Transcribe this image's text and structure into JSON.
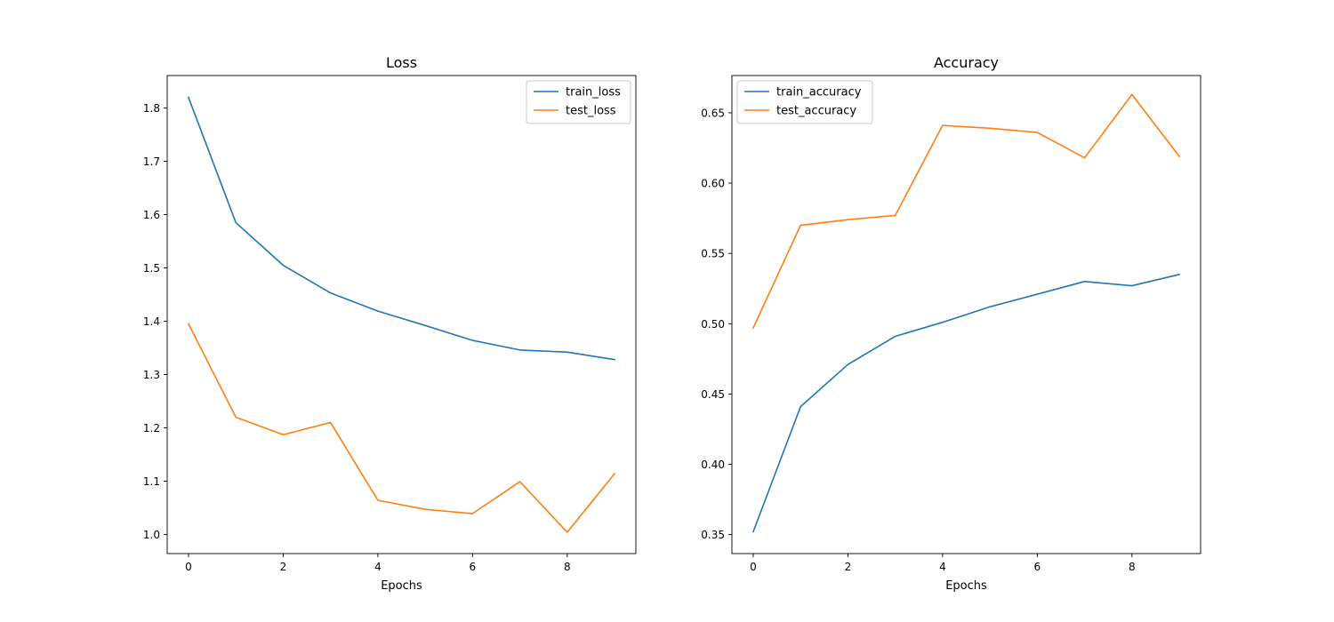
{
  "chart_data": [
    {
      "type": "line",
      "title": "Loss",
      "xlabel": "Epochs",
      "ylabel": "",
      "x": [
        0,
        1,
        2,
        3,
        4,
        5,
        6,
        7,
        8,
        9
      ],
      "xlim": [
        -0.45,
        9.45
      ],
      "ylim": [
        0.964,
        1.861
      ],
      "xticks": [
        0,
        2,
        4,
        6,
        8
      ],
      "yticks": [
        1.0,
        1.1,
        1.2,
        1.3,
        1.4,
        1.5,
        1.6,
        1.7,
        1.8
      ],
      "grid": false,
      "legend_position": "upper right",
      "series": [
        {
          "name": "train_loss",
          "color": "#1f77b4",
          "values": [
            1.82,
            1.585,
            1.505,
            1.453,
            1.419,
            1.392,
            1.364,
            1.346,
            1.342,
            1.328
          ]
        },
        {
          "name": "test_loss",
          "color": "#ff7f0e",
          "values": [
            1.395,
            1.22,
            1.187,
            1.21,
            1.064,
            1.047,
            1.039,
            1.099,
            1.004,
            1.114
          ]
        }
      ]
    },
    {
      "type": "line",
      "title": "Accuracy",
      "xlabel": "Epochs",
      "ylabel": "",
      "x": [
        0,
        1,
        2,
        3,
        4,
        5,
        6,
        7,
        8,
        9
      ],
      "xlim": [
        -0.45,
        9.45
      ],
      "ylim": [
        0.3365,
        0.6765
      ],
      "xticks": [
        0,
        2,
        4,
        6,
        8
      ],
      "yticks": [
        0.35,
        0.4,
        0.45,
        0.5,
        0.55,
        0.6,
        0.65
      ],
      "grid": false,
      "legend_position": "upper left",
      "series": [
        {
          "name": "train_accuracy",
          "color": "#1f77b4",
          "values": [
            0.352,
            0.441,
            0.471,
            0.491,
            0.501,
            0.512,
            0.521,
            0.53,
            0.527,
            0.535
          ]
        },
        {
          "name": "test_accuracy",
          "color": "#ff7f0e",
          "values": [
            0.497,
            0.57,
            0.574,
            0.577,
            0.641,
            0.639,
            0.636,
            0.618,
            0.663,
            0.619
          ]
        }
      ]
    }
  ]
}
